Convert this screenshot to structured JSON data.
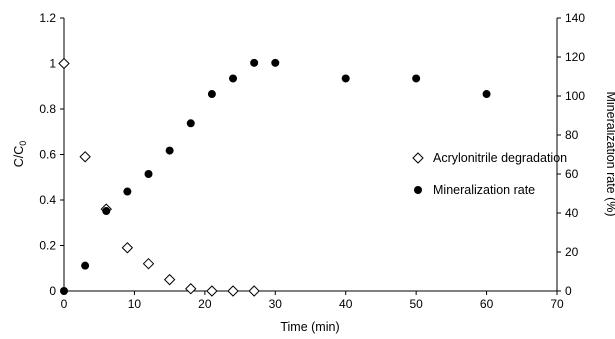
{
  "chart_data": {
    "type": "scatter",
    "xlabel": "Time (min)",
    "ylabel_left": "C/C",
    "ylabel_left_subscript": "0",
    "ylabel_right": "Mineralization rate (%)",
    "xlim": [
      0,
      70
    ],
    "ylim_left": [
      0,
      1.2
    ],
    "ylim_right": [
      0,
      140
    ],
    "x_ticks": [
      "0",
      "10",
      "20",
      "30",
      "40",
      "50",
      "60",
      "70"
    ],
    "y_left_ticks": [
      "0",
      "0.2",
      "0.4",
      "0.6",
      "0.8",
      "1",
      "1.2"
    ],
    "y_right_ticks": [
      "0",
      "20",
      "40",
      "60",
      "80",
      "100",
      "120",
      "140"
    ],
    "legend_placement": "center-right",
    "series": [
      {
        "name": "Acrylonitrile degradation",
        "axis": "left",
        "marker": "diamond-open",
        "x": [
          0,
          3,
          6,
          9,
          12,
          15,
          18,
          21,
          24,
          27
        ],
        "y": [
          1.0,
          0.59,
          0.36,
          0.19,
          0.12,
          0.05,
          0.01,
          0.0,
          0.0,
          0.0
        ]
      },
      {
        "name": "Mineralization rate",
        "axis": "right",
        "marker": "circle-filled",
        "x": [
          0,
          3,
          6,
          9,
          12,
          15,
          18,
          21,
          24,
          27,
          30,
          40,
          50,
          60
        ],
        "y": [
          0,
          13,
          41,
          51,
          60,
          72,
          86,
          101,
          109,
          117,
          117,
          109,
          109,
          101
        ]
      }
    ]
  }
}
